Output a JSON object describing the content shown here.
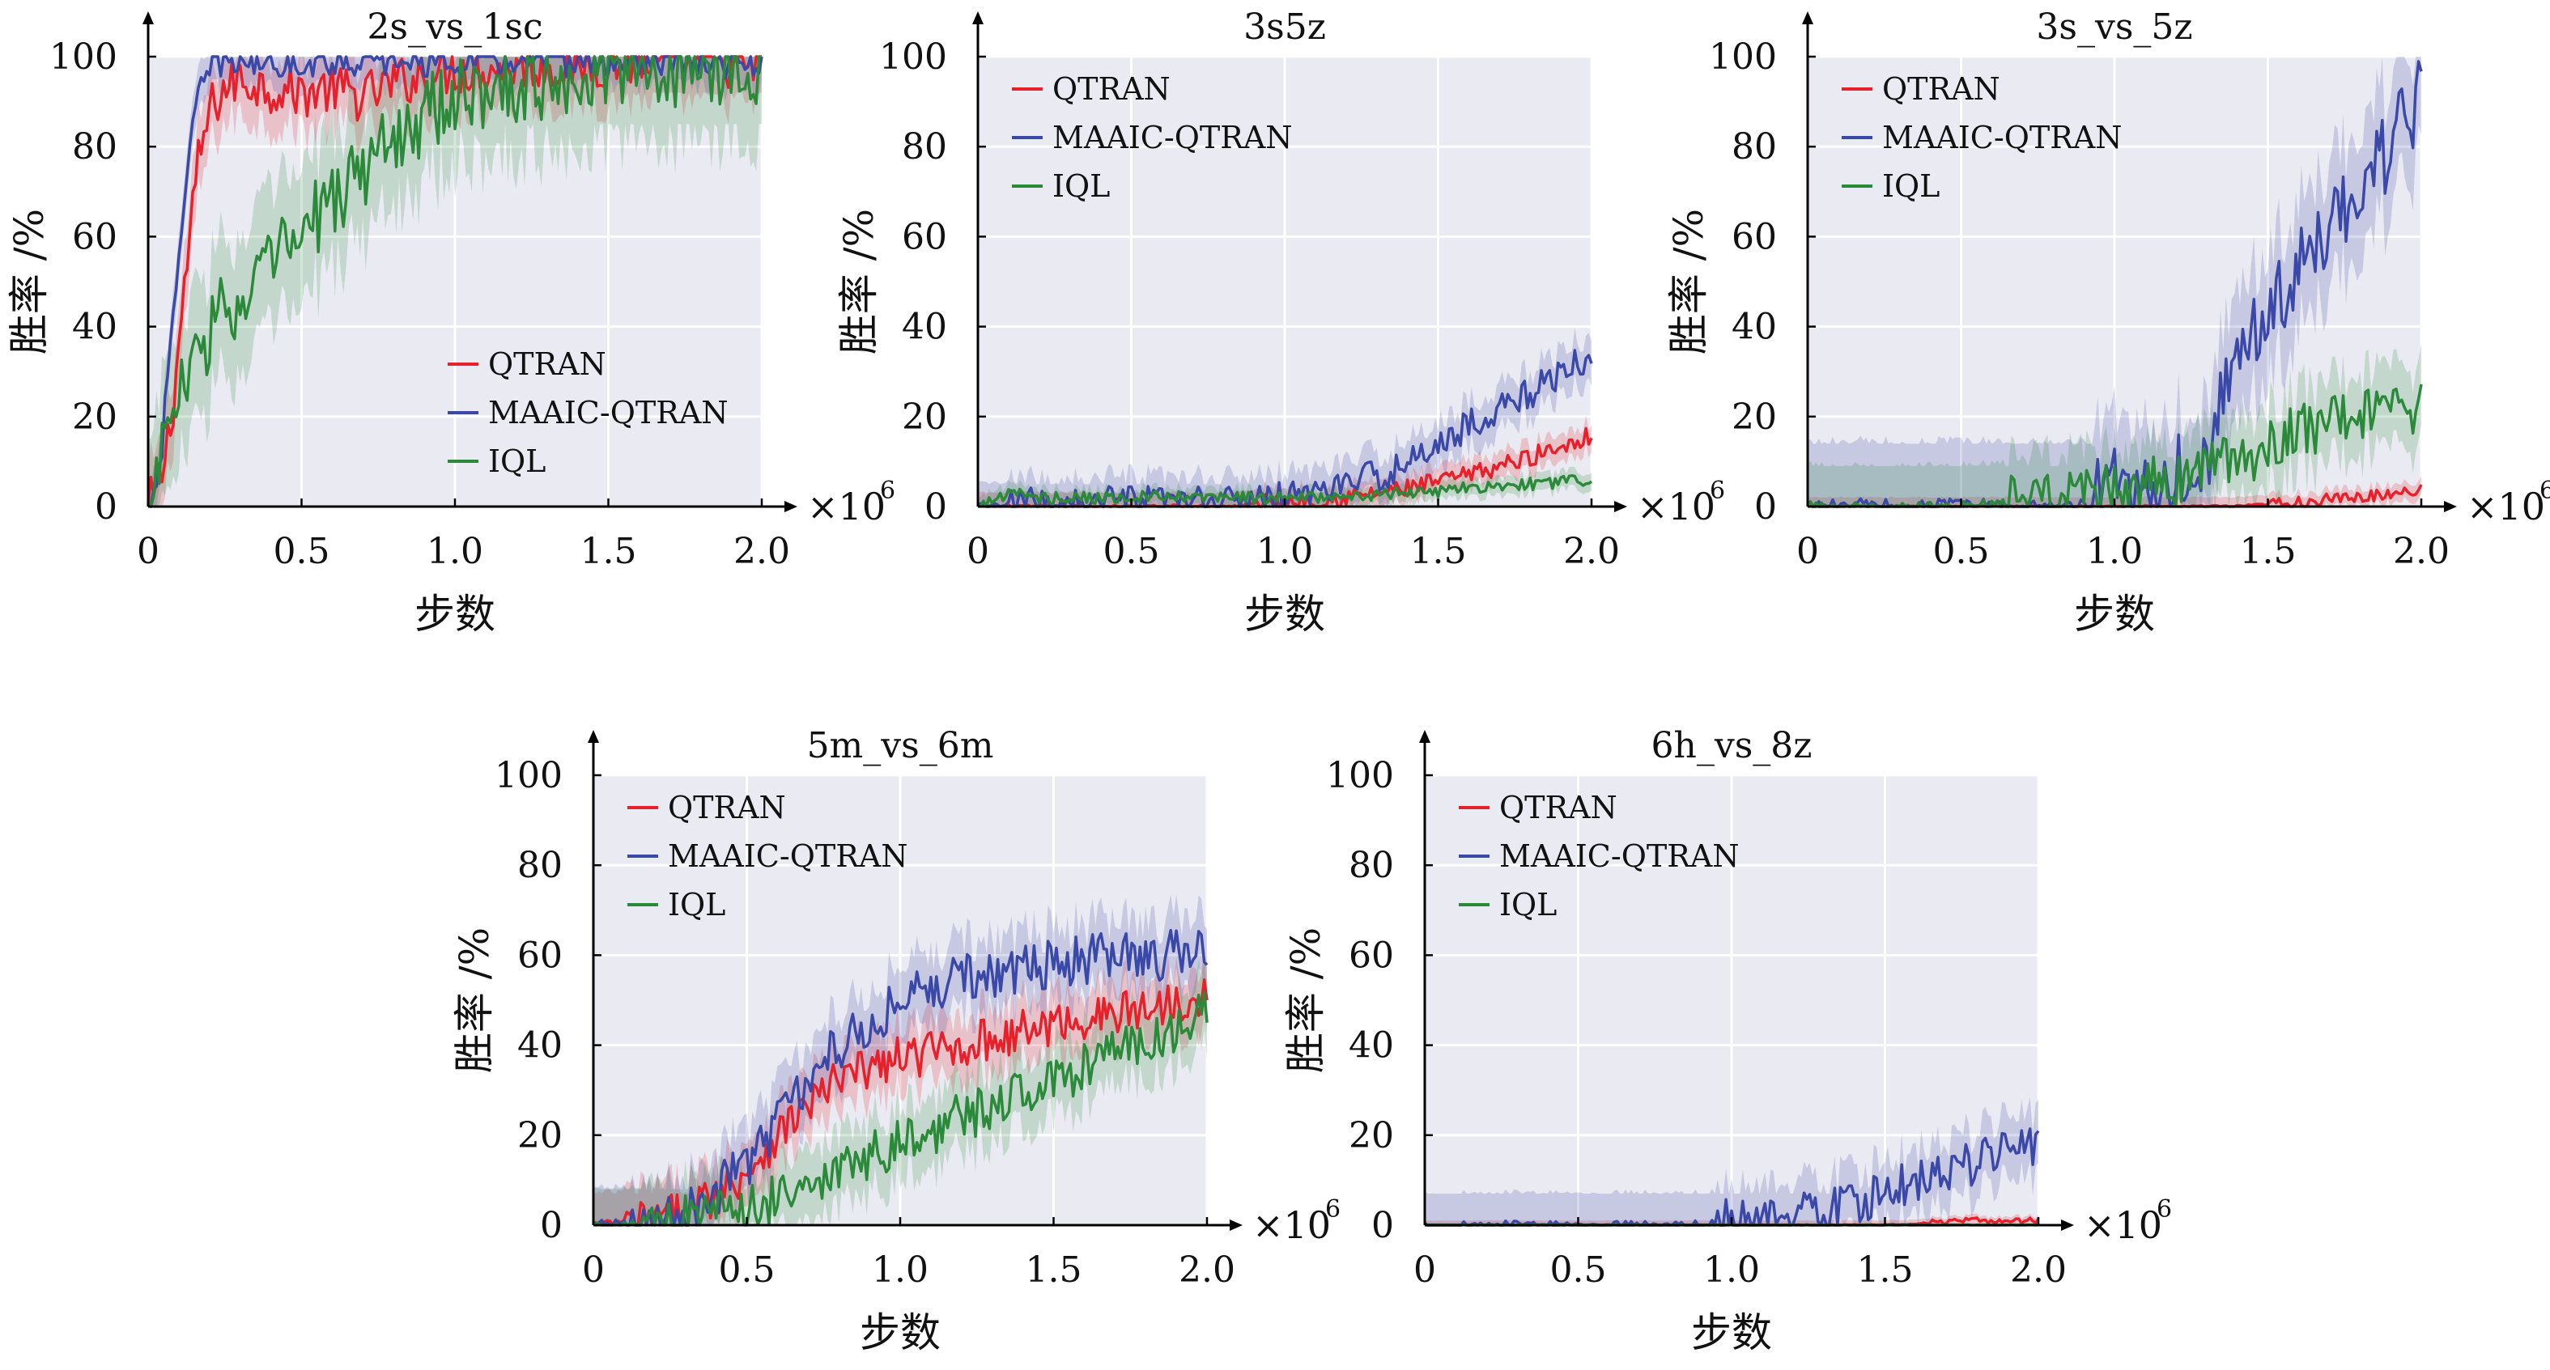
{
  "chart_data": [
    {
      "type": "line",
      "title": "2s_vs_1sc",
      "xlabel": "步数",
      "ylabel": "胜率 /%",
      "x_multiplier": "×10",
      "x_multiplier_exp": "6",
      "xlim": [
        0,
        2.0
      ],
      "ylim": [
        0,
        100
      ],
      "xticks": [
        "0",
        "0.5",
        "1.0",
        "1.5",
        "2.0"
      ],
      "yticks": [
        "0",
        "20",
        "40",
        "60",
        "80",
        "100"
      ],
      "grid": true,
      "legend_position": "lower-right",
      "series": [
        {
          "name": "QTRAN",
          "color": "#e8202a",
          "band": 8,
          "x": [
            0,
            0.04,
            0.08,
            0.12,
            0.16,
            0.2,
            0.25,
            0.3,
            0.4,
            0.5,
            0.6,
            0.7,
            0.8,
            0.9,
            1.0,
            1.2,
            1.4,
            1.6,
            1.8,
            2.0
          ],
          "y": [
            0,
            5,
            22,
            50,
            75,
            88,
            93,
            95,
            93,
            92,
            93,
            91,
            94,
            96,
            97,
            98,
            98,
            99,
            99,
            98
          ]
        },
        {
          "name": "MAAIC-QTRAN",
          "color": "#3a48a8",
          "band": 5,
          "x": [
            0,
            0.04,
            0.08,
            0.12,
            0.16,
            0.2,
            0.25,
            0.3,
            0.4,
            0.5,
            0.6,
            0.8,
            1.0,
            1.2,
            1.4,
            1.6,
            1.8,
            2.0
          ],
          "y": [
            0,
            10,
            40,
            72,
            90,
            97,
            99,
            99,
            99,
            99,
            99,
            99,
            99,
            99,
            99,
            99,
            99,
            98
          ]
        },
        {
          "name": "IQL",
          "color": "#2a8a3a",
          "band": 15,
          "x": [
            0,
            0.05,
            0.1,
            0.15,
            0.2,
            0.25,
            0.3,
            0.35,
            0.4,
            0.5,
            0.6,
            0.7,
            0.8,
            0.9,
            1.0,
            1.1,
            1.2,
            1.4,
            1.6,
            1.8,
            2.0
          ],
          "y": [
            0,
            15,
            25,
            30,
            40,
            45,
            42,
            48,
            55,
            60,
            68,
            75,
            82,
            87,
            90,
            93,
            94,
            96,
            97,
            98,
            98
          ]
        }
      ]
    },
    {
      "type": "line",
      "title": "3s5z",
      "xlabel": "步数",
      "ylabel": "胜率 /%",
      "x_multiplier": "×10",
      "x_multiplier_exp": "6",
      "xlim": [
        0,
        2.0
      ],
      "ylim": [
        0,
        100
      ],
      "xticks": [
        "0",
        "0.5",
        "1.0",
        "1.5",
        "2.0"
      ],
      "yticks": [
        "0",
        "20",
        "40",
        "60",
        "80",
        "100"
      ],
      "grid": true,
      "legend_position": "top-left",
      "series": [
        {
          "name": "QTRAN",
          "color": "#e8202a",
          "band": 3,
          "x": [
            0,
            0.2,
            0.4,
            0.6,
            0.8,
            1.0,
            1.2,
            1.4,
            1.6,
            1.8,
            2.0
          ],
          "y": [
            0,
            0,
            0,
            0,
            0,
            1,
            2,
            4,
            7,
            11,
            16
          ]
        },
        {
          "name": "MAAIC-QTRAN",
          "color": "#3a48a8",
          "band": 5,
          "x": [
            0,
            0.2,
            0.4,
            0.6,
            0.8,
            1.0,
            1.2,
            1.4,
            1.5,
            1.6,
            1.7,
            1.8,
            1.9,
            2.0
          ],
          "y": [
            0,
            1,
            1,
            1,
            1,
            2,
            5,
            9,
            14,
            18,
            22,
            25,
            30,
            33
          ]
        },
        {
          "name": "IQL",
          "color": "#2a8a3a",
          "band": 2,
          "x": [
            0,
            0.1,
            0.2,
            0.4,
            0.6,
            0.8,
            1.0,
            1.2,
            1.4,
            1.6,
            1.8,
            2.0
          ],
          "y": [
            0,
            3,
            2,
            2,
            2,
            2,
            2,
            2,
            3,
            4,
            5,
            6
          ]
        }
      ]
    },
    {
      "type": "line",
      "title": "3s_vs_5z",
      "xlabel": "步数",
      "ylabel": "胜率 /%",
      "x_multiplier": "×10",
      "x_multiplier_exp": "6",
      "xlim": [
        0,
        2.0
      ],
      "ylim": [
        0,
        100
      ],
      "xticks": [
        "0",
        "0.5",
        "1.0",
        "1.5",
        "2.0"
      ],
      "yticks": [
        "0",
        "20",
        "40",
        "60",
        "80",
        "100"
      ],
      "grid": true,
      "legend_position": "top-left",
      "series": [
        {
          "name": "QTRAN",
          "color": "#e8202a",
          "band": 2,
          "x": [
            0,
            0.5,
            1.0,
            1.4,
            1.6,
            1.8,
            2.0
          ],
          "y": [
            0,
            0,
            0,
            0,
            1,
            2,
            4
          ]
        },
        {
          "name": "MAAIC-QTRAN",
          "color": "#3a48a8",
          "band": 14,
          "x": [
            0,
            0.5,
            0.9,
            1.0,
            1.1,
            1.2,
            1.3,
            1.35,
            1.4,
            1.5,
            1.6,
            1.7,
            1.8,
            1.9,
            2.0
          ],
          "y": [
            0,
            0,
            0,
            5,
            6,
            7,
            12,
            22,
            35,
            42,
            52,
            62,
            72,
            80,
            91
          ]
        },
        {
          "name": "IQL",
          "color": "#2a8a3a",
          "band": 9,
          "x": [
            0,
            0.5,
            0.8,
            0.9,
            1.0,
            1.2,
            1.4,
            1.5,
            1.6,
            1.7,
            1.8,
            1.9,
            2.0
          ],
          "y": [
            0,
            0,
            1,
            2,
            3,
            6,
            10,
            14,
            17,
            19,
            20,
            21,
            23
          ]
        }
      ]
    },
    {
      "type": "line",
      "title": "5m_vs_6m",
      "xlabel": "步数",
      "ylabel": "胜率 /%",
      "x_multiplier": "×10",
      "x_multiplier_exp": "6",
      "xlim": [
        0,
        2.0
      ],
      "ylim": [
        0,
        100
      ],
      "xticks": [
        "0",
        "0.5",
        "1.0",
        "1.5",
        "2.0"
      ],
      "yticks": [
        "0",
        "20",
        "40",
        "60",
        "80",
        "100"
      ],
      "grid": true,
      "legend_position": "top-left",
      "series": [
        {
          "name": "QTRAN",
          "color": "#e8202a",
          "band": 7,
          "x": [
            0,
            0.2,
            0.3,
            0.4,
            0.5,
            0.6,
            0.7,
            0.8,
            0.9,
            1.0,
            1.2,
            1.4,
            1.6,
            1.8,
            2.0
          ],
          "y": [
            0,
            1,
            3,
            7,
            12,
            20,
            27,
            32,
            35,
            37,
            40,
            43,
            46,
            48,
            52
          ]
        },
        {
          "name": "MAAIC-QTRAN",
          "color": "#3a48a8",
          "band": 8,
          "x": [
            0,
            0.2,
            0.3,
            0.4,
            0.5,
            0.6,
            0.7,
            0.8,
            0.9,
            1.0,
            1.1,
            1.2,
            1.4,
            1.6,
            1.8,
            2.0
          ],
          "y": [
            0,
            1,
            3,
            8,
            14,
            23,
            32,
            40,
            45,
            50,
            53,
            55,
            57,
            59,
            60,
            60
          ]
        },
        {
          "name": "IQL",
          "color": "#2a8a3a",
          "band": 8,
          "x": [
            0,
            0.3,
            0.4,
            0.5,
            0.6,
            0.7,
            0.8,
            0.9,
            1.0,
            1.2,
            1.4,
            1.6,
            1.8,
            2.0
          ],
          "y": [
            0,
            1,
            2,
            3,
            6,
            9,
            12,
            15,
            18,
            24,
            29,
            35,
            41,
            47
          ]
        }
      ]
    },
    {
      "type": "line",
      "title": "6h_vs_8z",
      "xlabel": "步数",
      "ylabel": "胜率 /%",
      "x_multiplier": "×10",
      "x_multiplier_exp": "6",
      "xlim": [
        0,
        2.0
      ],
      "ylim": [
        0,
        100
      ],
      "xticks": [
        "0",
        "0.5",
        "1.0",
        "1.5",
        "2.0"
      ],
      "yticks": [
        "0",
        "20",
        "40",
        "60",
        "80",
        "100"
      ],
      "grid": true,
      "legend_position": "top-left",
      "series": [
        {
          "name": "QTRAN",
          "color": "#e8202a",
          "band": 1,
          "x": [
            0,
            0.5,
            1.0,
            1.5,
            1.8,
            2.0
          ],
          "y": [
            0,
            0,
            0,
            0,
            1,
            1
          ]
        },
        {
          "name": "MAAIC-QTRAN",
          "color": "#3a48a8",
          "band": 7,
          "x": [
            0,
            0.9,
            1.0,
            1.1,
            1.2,
            1.3,
            1.4,
            1.5,
            1.6,
            1.7,
            1.8,
            1.9,
            2.0
          ],
          "y": [
            0,
            0,
            1,
            1,
            2,
            3,
            5,
            7,
            10,
            12,
            14,
            16,
            18
          ]
        },
        {
          "name": "IQL",
          "color": "#2a8a3a",
          "band": 0.5,
          "x": [
            0,
            1.0,
            2.0
          ],
          "y": [
            0,
            0,
            0
          ]
        }
      ]
    }
  ]
}
